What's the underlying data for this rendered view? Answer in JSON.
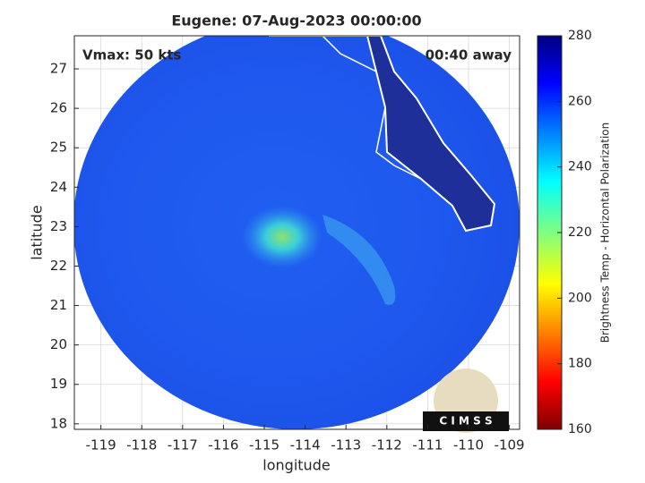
{
  "title": "Eugene: 07-Aug-2023 00:00:00",
  "annotations": {
    "left": "Vmax: 50 kts",
    "right": "00:40 away"
  },
  "logo": "C I M S S",
  "map": {
    "xlabel": "longitude",
    "ylabel": "latitude",
    "xlim": [
      -119.65,
      -108.75
    ],
    "ylim": [
      17.86,
      27.84
    ],
    "xticks": [
      -119,
      -118,
      -117,
      -116,
      -115,
      -114,
      -113,
      -112,
      -111,
      -110,
      -109
    ],
    "yticks": [
      18,
      19,
      20,
      21,
      22,
      23,
      24,
      25,
      26,
      27
    ],
    "grid": true
  },
  "colorbar": {
    "label": "Brightness Temp - Horizontal Polarization",
    "clim": [
      160,
      280
    ],
    "ticks": [
      160,
      180,
      200,
      220,
      240,
      260,
      280
    ]
  }
}
